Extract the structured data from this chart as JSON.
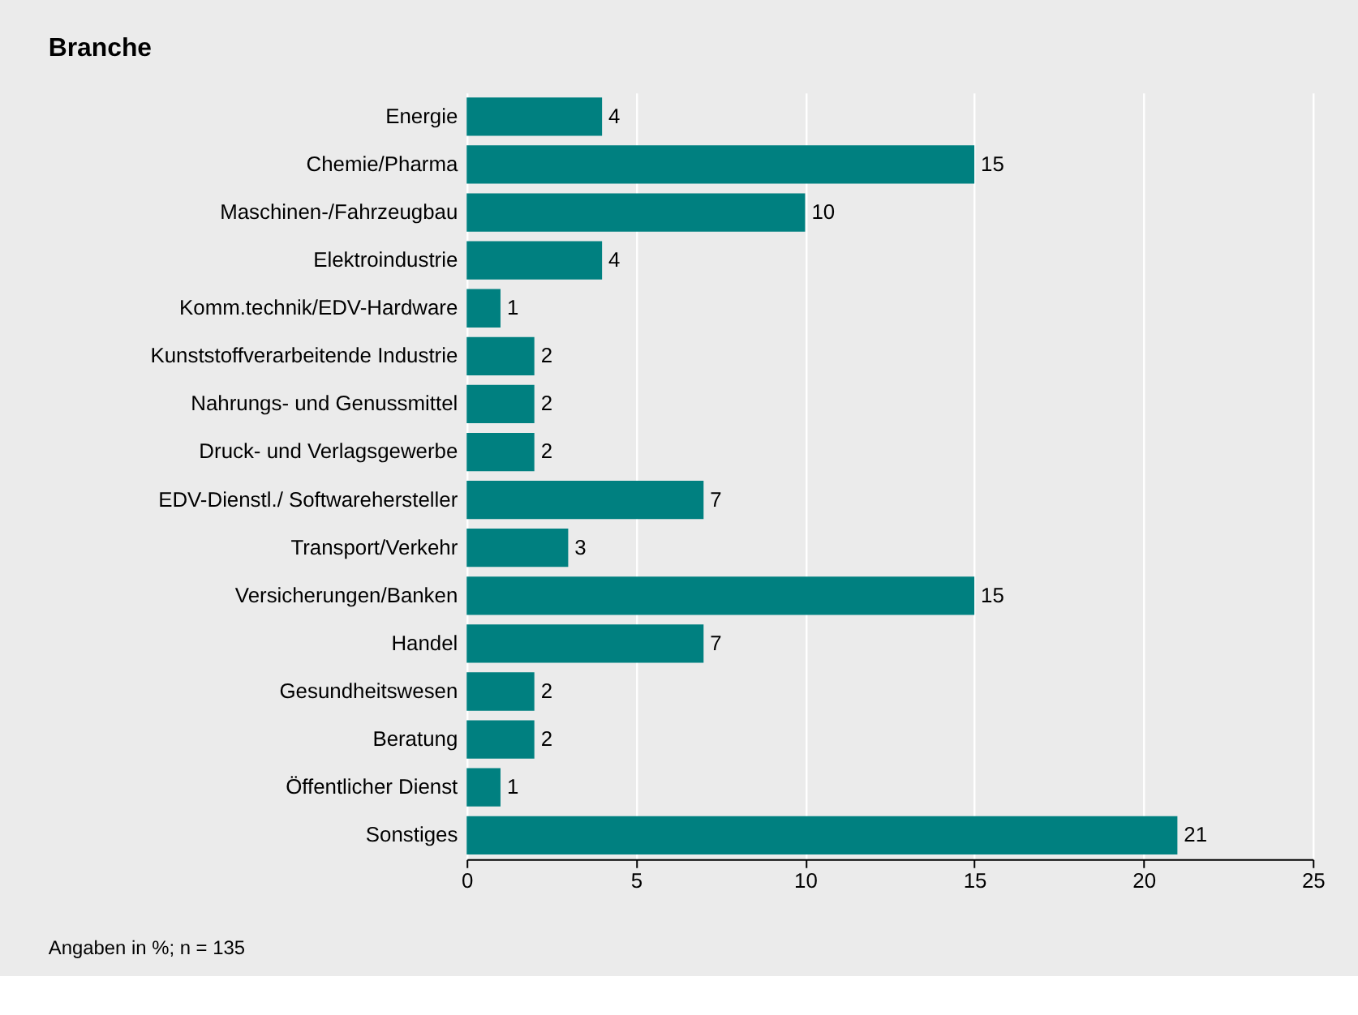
{
  "chart_data": {
    "type": "bar",
    "orientation": "horizontal",
    "title": "Branche",
    "categories": [
      "Energie",
      "Chemie/Pharma",
      "Maschinen-/Fahrzeugbau",
      "Elektroindustrie",
      "Komm.technik/EDV-Hardware",
      "Kunststoffverarbeitende Industrie",
      "Nahrungs- und Genussmittel",
      "Druck- und Verlagsgewerbe",
      "EDV-Dienstl./ Softwarehersteller",
      "Transport/Verkehr",
      "Versicherungen/Banken",
      "Handel",
      "Gesundheitswesen",
      "Beratung",
      "Öffentlicher Dienst",
      "Sonstiges"
    ],
    "values": [
      4,
      15,
      10,
      4,
      1,
      2,
      2,
      2,
      7,
      3,
      15,
      7,
      2,
      2,
      1,
      21
    ],
    "color": "#008080",
    "xlim": [
      0,
      25
    ],
    "xticks": [
      0,
      5,
      10,
      15,
      20,
      25
    ],
    "grid": "x",
    "data_labels": true,
    "annotations": [
      "Angaben in %; n = 135"
    ]
  }
}
